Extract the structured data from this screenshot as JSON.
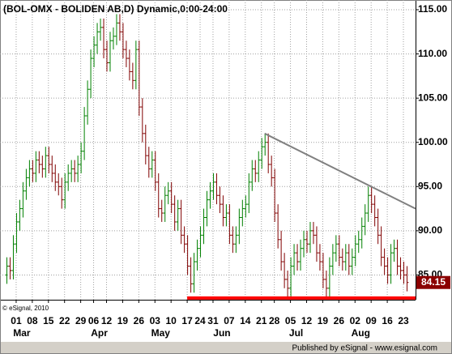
{
  "chart_data": {
    "type": "ohlc",
    "title": "(BOL-OMX - BOLIDEN AB,D) Dynamic,0:00-24:00",
    "copyright": "© eSignal, 2010",
    "footer": "Published by eSignal - www.esignal.com",
    "categories": [
      null,
      null,
      null,
      "01",
      null,
      null,
      null,
      null,
      "08",
      null,
      null,
      null,
      null,
      "15",
      null,
      null,
      null,
      null,
      "22",
      null,
      null,
      null,
      null,
      "29",
      null,
      null,
      null,
      "06",
      null,
      null,
      null,
      "12",
      null,
      null,
      null,
      null,
      "19",
      null,
      null,
      null,
      null,
      "26",
      null,
      null,
      null,
      null,
      "03",
      null,
      null,
      null,
      null,
      "10",
      null,
      null,
      null,
      null,
      "17",
      null,
      null,
      null,
      "24",
      null,
      null,
      null,
      "31",
      null,
      null,
      null,
      null,
      "07",
      null,
      null,
      null,
      null,
      "14",
      null,
      null,
      null,
      null,
      "21",
      null,
      null,
      null,
      "28",
      null,
      null,
      null,
      null,
      "05",
      null,
      null,
      null,
      null,
      "12",
      null,
      null,
      null,
      null,
      "19",
      null,
      null,
      null,
      null,
      "26",
      null,
      null,
      null,
      null,
      "02",
      null,
      null,
      null,
      null,
      "09",
      null,
      null,
      null,
      null,
      "16",
      null,
      null,
      null,
      null,
      "23",
      null
    ],
    "months": [
      null,
      null,
      null,
      "Mar",
      null,
      null,
      null,
      null,
      null,
      null,
      null,
      null,
      null,
      null,
      null,
      null,
      null,
      null,
      null,
      null,
      null,
      null,
      null,
      null,
      null,
      null,
      null,
      "Apr",
      null,
      null,
      null,
      null,
      null,
      null,
      null,
      null,
      null,
      null,
      null,
      null,
      null,
      null,
      null,
      null,
      null,
      null,
      "May",
      null,
      null,
      null,
      null,
      null,
      null,
      null,
      null,
      null,
      null,
      null,
      null,
      null,
      null,
      null,
      null,
      null,
      null,
      "Jun",
      null,
      null,
      null,
      null,
      null,
      null,
      null,
      null,
      null,
      null,
      null,
      null,
      null,
      null,
      null,
      null,
      null,
      null,
      null,
      null,
      null,
      null,
      "Jul",
      null,
      null,
      null,
      null,
      null,
      null,
      null,
      null,
      null,
      null,
      null,
      null,
      null,
      null,
      null,
      null,
      null,
      null,
      null,
      "Aug",
      null,
      null,
      null,
      null,
      null,
      null,
      null,
      null,
      null,
      null,
      null,
      null,
      null,
      null,
      null,
      null
    ],
    "open": [
      85,
      86,
      85.5,
      88.5,
      91,
      92.5,
      94.5,
      96,
      97,
      96.5,
      98,
      97.5,
      97,
      98.5,
      97.5,
      96.5,
      95.5,
      95,
      93.5,
      95.5,
      96.5,
      97,
      96.5,
      97.5,
      99,
      103,
      106,
      109.5,
      111,
      112.5,
      113,
      110.5,
      109,
      111.5,
      112,
      113.5,
      112.5,
      110.5,
      109.5,
      108,
      107,
      110.5,
      104,
      101,
      98.5,
      97,
      98,
      95.5,
      92.5,
      92,
      94,
      94.5,
      93,
      91,
      92.5,
      89.5,
      88.5,
      86,
      84,
      86.5,
      88,
      89.5,
      91.5,
      93.5,
      94.5,
      95.5,
      94,
      93,
      91.5,
      92,
      89.5,
      88.5,
      89.5,
      91.5,
      92.5,
      93,
      95.5,
      97,
      96.5,
      98,
      99.5,
      100,
      97.5,
      96,
      92,
      89,
      86.5,
      84.5,
      83.5,
      86,
      87.5,
      86.5,
      88,
      89,
      88.5,
      90,
      89.5,
      87.5,
      86.5,
      84.5,
      83.5,
      86,
      87.5,
      88.5,
      87,
      86.5,
      87.5,
      86,
      87,
      88.5,
      89,
      90.5,
      92,
      94,
      93,
      91.5,
      89.5,
      87,
      86,
      85,
      87.5,
      88,
      86,
      85.5,
      85
    ],
    "high": [
      87,
      87,
      89.5,
      92,
      93.5,
      95.5,
      97,
      98,
      98,
      99,
      99,
      98.5,
      99.5,
      99.5,
      98.5,
      97.5,
      96.5,
      96,
      96.5,
      97.5,
      98,
      98,
      98.5,
      100,
      104,
      107,
      110.5,
      112,
      113.5,
      114,
      114,
      111.5,
      112.5,
      113,
      114.5,
      114.5,
      113.5,
      111.5,
      110.5,
      109,
      111.5,
      111.5,
      105,
      102,
      99.5,
      99,
      99,
      96.5,
      93.5,
      95,
      95.5,
      95.5,
      94,
      93.5,
      93.5,
      90.5,
      89.5,
      87,
      87.5,
      89,
      90.5,
      92.5,
      94.5,
      95.5,
      96.5,
      96.5,
      95,
      94,
      93,
      93,
      90.5,
      90.5,
      92.5,
      93.5,
      94,
      96.5,
      98,
      98,
      99,
      100.5,
      101,
      101,
      98.5,
      97,
      93,
      90,
      87.5,
      85.5,
      87,
      88.5,
      88.5,
      89,
      90,
      90,
      91,
      91,
      90.5,
      88.5,
      87.5,
      85.5,
      87,
      88.5,
      89.5,
      89.5,
      88,
      88.5,
      88.5,
      88,
      89.5,
      90,
      91.5,
      93,
      95,
      95,
      94,
      92.5,
      90.5,
      88,
      87,
      88.5,
      89,
      89,
      87,
      86.5,
      86
    ],
    "low": [
      84,
      84.5,
      84.5,
      87.5,
      90,
      91.5,
      93.5,
      95,
      95.5,
      95.5,
      96.5,
      96,
      96,
      96.5,
      95.5,
      94.5,
      94,
      92.5,
      92.5,
      94.5,
      95.5,
      95.5,
      95.5,
      96.5,
      98,
      102,
      105,
      108.5,
      110,
      111.5,
      109.5,
      108,
      108,
      110.5,
      111,
      111.5,
      109.5,
      108.5,
      107,
      106,
      106,
      103,
      100,
      97.5,
      96,
      96,
      94.5,
      91.5,
      91,
      91,
      93,
      92,
      90,
      90,
      88.5,
      87.5,
      85,
      83,
      83,
      85.5,
      87,
      88.5,
      90.5,
      92.5,
      93.5,
      93,
      92,
      90.5,
      90.5,
      88.5,
      87.5,
      87.5,
      88.5,
      90.5,
      91.5,
      92,
      94.5,
      95.5,
      95.5,
      97,
      98.5,
      96.5,
      95,
      91,
      88,
      85.5,
      83.5,
      82.5,
      82.5,
      85,
      85.5,
      85.5,
      87,
      87.5,
      87.5,
      88.5,
      86.5,
      85.5,
      83.5,
      82.5,
      82.5,
      85,
      86.5,
      86,
      85.5,
      85.5,
      85,
      85,
      86,
      87.5,
      88,
      89.5,
      91,
      92,
      90.5,
      88.5,
      86,
      85,
      84,
      84,
      86.5,
      85,
      84.5,
      84,
      83.15
    ],
    "close": [
      86,
      85.5,
      88.5,
      91,
      92.5,
      94.5,
      96,
      97,
      96.5,
      98,
      97.5,
      97,
      98.5,
      97.5,
      96.5,
      95.5,
      95,
      93.5,
      95.5,
      96.5,
      97,
      96.5,
      97.5,
      99,
      103,
      106,
      109.5,
      111,
      112.5,
      113,
      110.5,
      109,
      111.5,
      112,
      113.5,
      112.5,
      110.5,
      109.5,
      108,
      107,
      110.5,
      104,
      101,
      98.5,
      97,
      98,
      95.5,
      92.5,
      92,
      94,
      94.5,
      93,
      91,
      92.5,
      89.5,
      88.5,
      86,
      84,
      86.5,
      88,
      89.5,
      91.5,
      93.5,
      94.5,
      95.5,
      94,
      93,
      91.5,
      92,
      89.5,
      88.5,
      89.5,
      91.5,
      92.5,
      93,
      95.5,
      97,
      96.5,
      98,
      99.5,
      100,
      97.5,
      96,
      92,
      89,
      86.5,
      84.5,
      83.5,
      86,
      87.5,
      86.5,
      88,
      89,
      88.5,
      90,
      89.5,
      87.5,
      86.5,
      84.5,
      83.5,
      86,
      87.5,
      88.5,
      87,
      86.5,
      87.5,
      86,
      87,
      88.5,
      89,
      90.5,
      92,
      94,
      93,
      91.5,
      89.5,
      87,
      86,
      85,
      87.5,
      88,
      86,
      85.5,
      85,
      84.15
    ],
    "up_color": "#008000",
    "down_color": "#800000",
    "last_color": "#8b0000",
    "trendlines": [
      {
        "color": "#808080",
        "from": 80,
        "values": [
          101,
          92.5
        ]
      },
      {
        "color": "#ff0000",
        "from": 56,
        "values": [
          82.4,
          82.4
        ]
      }
    ],
    "ylim": [
      82.2,
      116.1
    ],
    "yticks": [
      {
        "value": 85,
        "label": "85.00"
      },
      {
        "value": 90,
        "label": "90.00"
      },
      {
        "value": 95,
        "label": "95.00"
      },
      {
        "value": 100,
        "label": "100.00"
      },
      {
        "value": 105,
        "label": "105.00"
      },
      {
        "value": 110,
        "label": "110.00"
      },
      {
        "value": 115,
        "label": "115.00"
      }
    ],
    "grid": true
  }
}
